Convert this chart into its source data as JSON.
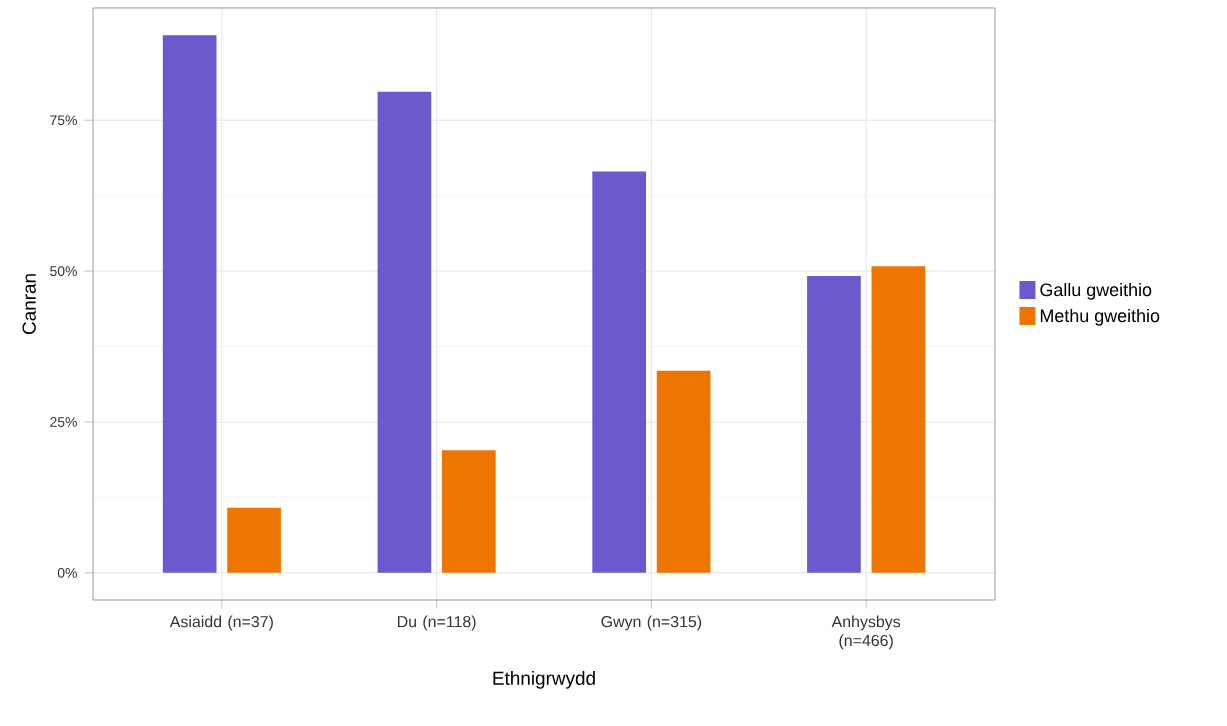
{
  "chart_data": {
    "type": "bar",
    "xlabel": "Ethnigrwydd",
    "ylabel": "Canran",
    "categories": [
      "Asiaidd (n=37)",
      "Du (n=118)",
      "Gwyn (n=315)",
      "Anhysbys (n=466)"
    ],
    "series": [
      {
        "name": "Gallu gweithio",
        "color": "#6a5acd",
        "values": [
          89.1,
          79.7,
          66.5,
          49.2
        ]
      },
      {
        "name": "Methu gweithio",
        "color": "#ee7600",
        "values": [
          10.8,
          20.3,
          33.5,
          50.8
        ]
      }
    ],
    "ylim": [
      -4.5,
      93.6
    ],
    "yticks": [
      {
        "value": 0,
        "label": "0%"
      },
      {
        "value": 25,
        "label": "25%"
      },
      {
        "value": 50,
        "label": "50%"
      },
      {
        "value": 75,
        "label": "75%"
      }
    ],
    "grid": true,
    "legend": "right"
  }
}
